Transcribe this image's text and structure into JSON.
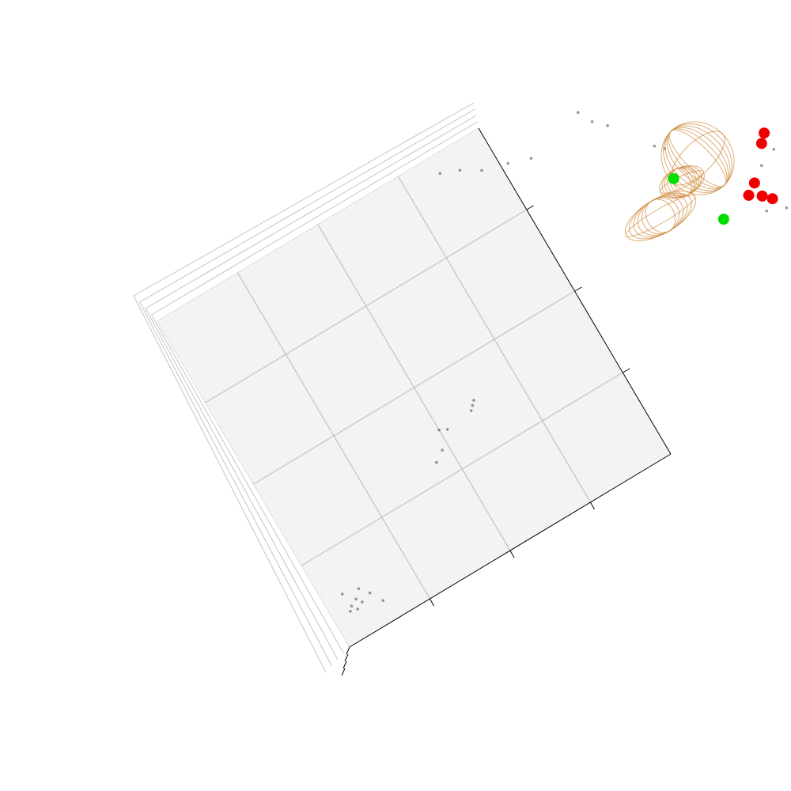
{
  "chart_data": {
    "type": "scatter",
    "projection": "3d",
    "grid": true,
    "grid_divisions": 4,
    "colors": {
      "pane": "#f3f3f3",
      "grid": "#b9b9b9",
      "axis": "#000000",
      "points": "#444444",
      "marker_red": "#ee0000",
      "marker_green": "#00e000",
      "ellipsoid": "#d2914a"
    },
    "series": [
      {
        "values": [
          [
            0.05,
            0.08
          ],
          [
            0.06,
            0.09
          ],
          [
            0.07,
            0.075
          ],
          [
            0.08,
            0.1
          ],
          [
            0.09,
            0.085
          ],
          [
            0.1,
            0.12
          ],
          [
            0.12,
            0.095
          ],
          [
            0.055,
            0.13
          ],
          [
            0.14,
            0.06
          ],
          [
            0.45,
            0.3
          ],
          [
            0.48,
            0.32
          ],
          [
            0.5,
            0.37
          ],
          [
            0.52,
            0.36
          ],
          [
            0.6,
            0.37
          ],
          [
            0.61,
            0.38
          ],
          [
            0.62,
            0.39
          ]
        ]
      },
      {
        "values": [
          [
            0.85,
            0.95
          ],
          [
            0.9,
            0.93
          ],
          [
            0.95,
            0.9
          ],
          [
            1.02,
            0.88
          ],
          [
            1.08,
            0.86
          ]
        ]
      },
      {
        "values": [
          [
            1.55,
            0.42
          ],
          [
            1.6,
            0.4
          ],
          [
            1.65,
            0.37
          ],
          [
            1.58,
            0.45
          ],
          [
            1.64,
            0.43
          ],
          [
            1.7,
            0.4
          ],
          [
            1.75,
            0.37
          ],
          [
            1.62,
            0.35
          ],
          [
            1.68,
            0.38
          ],
          [
            1.72,
            0.44
          ],
          [
            1.8,
            0.33
          ],
          [
            1.85,
            0.3
          ],
          [
            1.55,
            0.5
          ],
          [
            1.6,
            0.53
          ],
          [
            1.65,
            0.55
          ],
          [
            1.4,
            0.7
          ],
          [
            1.38,
            0.72
          ],
          [
            1.3,
            0.83
          ],
          [
            1.27,
            0.86
          ],
          [
            1.25,
            0.9
          ]
        ]
      }
    ],
    "markers_red": [
      [
        1.56,
        0.46
      ],
      [
        1.58,
        0.44
      ],
      [
        1.53,
        0.48
      ],
      [
        1.56,
        0.5
      ],
      [
        1.63,
        0.58
      ],
      [
        1.65,
        0.6
      ]
    ],
    "markers_green": [
      [
        1.44,
        0.46
      ],
      [
        1.38,
        0.62
      ]
    ]
  }
}
